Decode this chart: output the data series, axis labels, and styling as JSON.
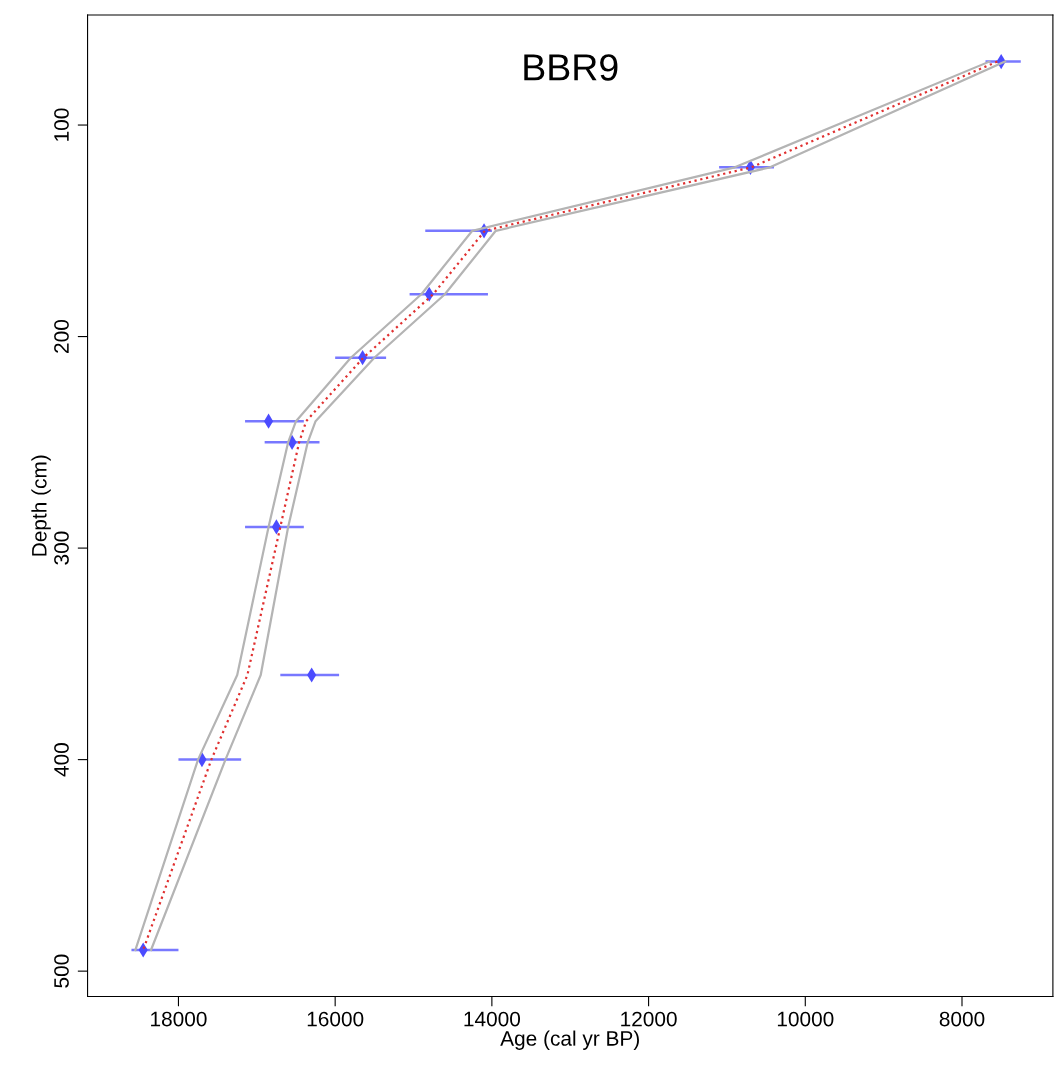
{
  "chart_data": {
    "type": "line",
    "title": "BBR9",
    "xlabel": "Age (cal yr BP)",
    "ylabel": "Depth (cm)",
    "xlim": [
      19160,
      6840
    ],
    "ylim": [
      512,
      48
    ],
    "xticks": [
      18000,
      16000,
      14000,
      12000,
      10000,
      8000
    ],
    "yticks": [
      100,
      200,
      300,
      400,
      500
    ],
    "grid": false,
    "legend": false,
    "series": [
      {
        "color": "#b4b4b4",
        "line_style": "solid",
        "marker": "none",
        "x": [
          7450,
          10450,
          13950,
          14600,
          15500,
          16250,
          16350,
          16600,
          16950,
          17400,
          18350
        ],
        "values": [
          70,
          120,
          150,
          180,
          210,
          240,
          250,
          290,
          360,
          400,
          490
        ]
      },
      {
        "color": "#b4b4b4",
        "line_style": "solid",
        "marker": "none",
        "x": [
          7650,
          10900,
          14250,
          14900,
          15800,
          16500,
          16600,
          16850,
          17250,
          17750,
          18550
        ],
        "values": [
          70,
          120,
          150,
          180,
          210,
          240,
          250,
          290,
          360,
          400,
          490
        ]
      },
      {
        "color": "#e03030",
        "line_style": "dotted",
        "marker": "none",
        "x": [
          7550,
          10690,
          14090,
          14750,
          15640,
          16370,
          16460,
          16700,
          17120,
          17580,
          18450
        ],
        "values": [
          70,
          120,
          150,
          180,
          210,
          240,
          250,
          290,
          360,
          400,
          490
        ]
      },
      {
        "type": "scatter",
        "color": "#4b4bff",
        "marker": "diamond",
        "x": [
          7500,
          10700,
          14100,
          14800,
          15650,
          16850,
          16550,
          16750,
          16300,
          17700,
          18450
        ],
        "values": [
          70,
          120,
          150,
          180,
          210,
          240,
          250,
          290,
          360,
          400,
          490
        ],
        "xerrors": [
          [
            7250,
            7700
          ],
          [
            10400,
            11100
          ],
          [
            14000,
            14850
          ],
          [
            14050,
            15050
          ],
          [
            15350,
            16000
          ],
          [
            16400,
            17150
          ],
          [
            16200,
            16900
          ],
          [
            16400,
            17150
          ],
          [
            15950,
            16700
          ],
          [
            17200,
            18000
          ],
          [
            18000,
            18600
          ]
        ]
      }
    ]
  }
}
